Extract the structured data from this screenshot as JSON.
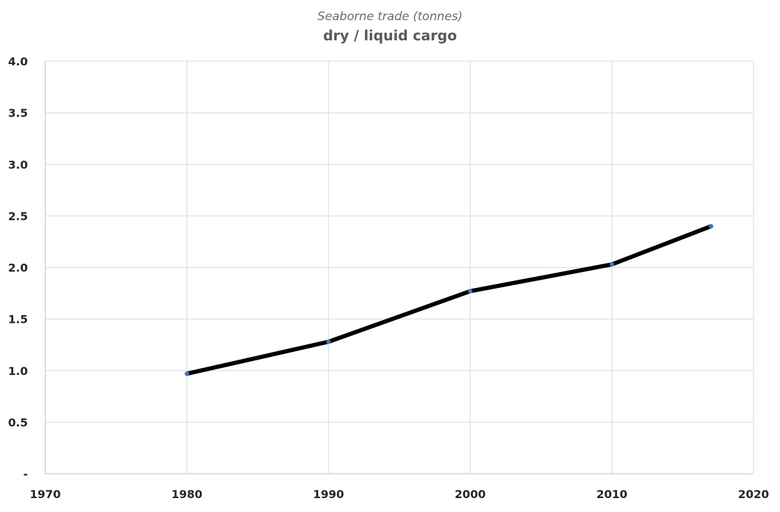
{
  "chart_data": {
    "type": "line",
    "title": "dry / liquid cargo",
    "subtitle": "Seaborne trade (tonnes)",
    "xlabel": "",
    "ylabel": "",
    "xlim": [
      1970,
      2020
    ],
    "ylim": [
      0,
      4.0
    ],
    "x_ticks": [
      1970,
      1980,
      1990,
      2000,
      2010,
      2020
    ],
    "x_tick_labels": [
      "1970",
      "1980",
      "1990",
      "2000",
      "2010",
      "2020"
    ],
    "y_ticks": [
      0,
      0.5,
      1.0,
      1.5,
      2.0,
      2.5,
      3.0,
      3.5,
      4.0
    ],
    "y_tick_labels": [
      "-",
      "0.5",
      "1.0",
      "1.5",
      "2.0",
      "2.5",
      "3.0",
      "3.5",
      "4.0"
    ],
    "grid": true,
    "legend": "none",
    "series": [
      {
        "x": [
          1980,
          1990,
          2000,
          2010,
          2017
        ],
        "y": [
          0.97,
          1.28,
          1.77,
          2.03,
          2.4
        ],
        "line_color": "#000000",
        "marker_color": "#4472c4"
      }
    ]
  }
}
